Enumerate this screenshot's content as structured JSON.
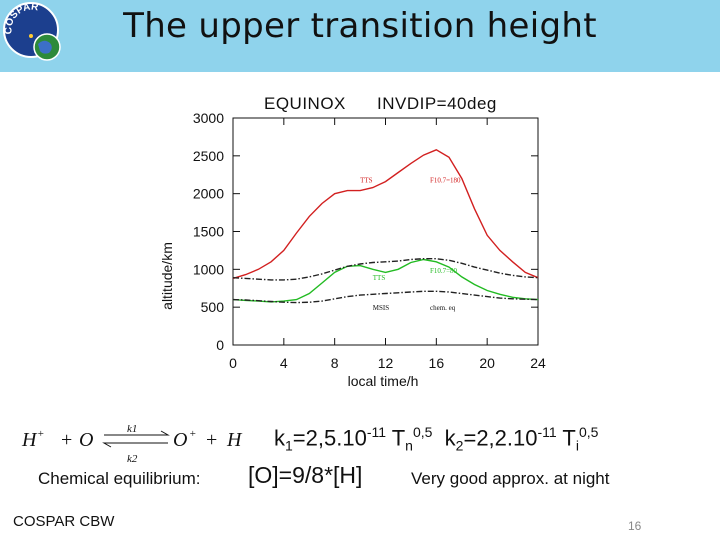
{
  "slide": {
    "title": "The upper transition height",
    "footer": "COSPAR CBW",
    "page_number": "16",
    "header_color": "#8fd3ec"
  },
  "logo": {
    "text": "COSPAR",
    "icon": "cospar-globe-logo"
  },
  "chart_data": {
    "type": "line",
    "header_left": "EQUINOX",
    "header_right": "INVDIP=40deg",
    "xlabel": "local time/h",
    "ylabel": "altitude/km",
    "xlim": [
      0,
      24
    ],
    "ylim": [
      0,
      3000
    ],
    "xticks": [
      0,
      4,
      8,
      12,
      16,
      20,
      24
    ],
    "yticks": [
      0,
      500,
      1000,
      1500,
      2000,
      2500,
      3000
    ],
    "grid": false,
    "series": [
      {
        "color": "#d22020",
        "dash": "solid",
        "x": [
          0,
          1,
          2,
          3,
          4,
          5,
          6,
          7,
          8,
          9,
          10,
          11,
          12,
          13,
          14,
          15,
          16,
          17,
          18,
          19,
          20,
          21,
          22,
          23,
          24
        ],
        "y": [
          880,
          930,
          1000,
          1100,
          1250,
          1480,
          1700,
          1870,
          2000,
          2040,
          2040,
          2080,
          2160,
          2280,
          2400,
          2510,
          2580,
          2480,
          2200,
          1800,
          1450,
          1250,
          1100,
          960,
          890
        ]
      },
      {
        "color": "#22bb22",
        "dash": "solid",
        "x": [
          0,
          1,
          2,
          3,
          4,
          5,
          6,
          7,
          8,
          9,
          10,
          11,
          12,
          13,
          14,
          15,
          16,
          17,
          18,
          19,
          20,
          21,
          22,
          23,
          24
        ],
        "y": [
          600,
          590,
          580,
          570,
          580,
          600,
          680,
          820,
          960,
          1040,
          1050,
          1000,
          960,
          1000,
          1090,
          1130,
          1100,
          1030,
          900,
          800,
          720,
          670,
          630,
          610,
          600
        ]
      },
      {
        "color": "#222222",
        "dash": "dashdot",
        "x": [
          0,
          1,
          2,
          3,
          4,
          5,
          6,
          7,
          8,
          9,
          10,
          11,
          12,
          13,
          14,
          15,
          16,
          17,
          18,
          19,
          20,
          21,
          22,
          23,
          24
        ],
        "y": [
          890,
          880,
          870,
          860,
          860,
          870,
          900,
          940,
          990,
          1040,
          1070,
          1090,
          1100,
          1110,
          1130,
          1140,
          1140,
          1120,
          1080,
          1030,
          990,
          950,
          920,
          900,
          890
        ]
      },
      {
        "color": "#222222",
        "dash": "dashdot",
        "x": [
          0,
          1,
          2,
          3,
          4,
          5,
          6,
          7,
          8,
          9,
          10,
          11,
          12,
          13,
          14,
          15,
          16,
          17,
          18,
          19,
          20,
          21,
          22,
          23,
          24
        ],
        "y": [
          600,
          595,
          585,
          575,
          565,
          560,
          565,
          580,
          610,
          640,
          660,
          670,
          680,
          690,
          700,
          710,
          710,
          700,
          680,
          660,
          640,
          620,
          610,
          605,
          600
        ]
      }
    ],
    "annotations": [
      {
        "text": "TTS",
        "x": 10,
        "y": 2150,
        "color": "#d22020"
      },
      {
        "text": "F10.7=180",
        "x": 15.5,
        "y": 2150,
        "color": "#d22020"
      },
      {
        "text": "TTS",
        "x": 11,
        "y": 860,
        "color": "#22bb22"
      },
      {
        "text": "F10.7=80",
        "x": 15.5,
        "y": 950,
        "color": "#22bb22"
      },
      {
        "text": "MSIS",
        "x": 11,
        "y": 460,
        "color": "#111111"
      },
      {
        "text": "chem. eq",
        "x": 15.5,
        "y": 460,
        "color": "#111111"
      }
    ]
  },
  "reaction": {
    "left": "H",
    "left_sup": "+",
    "plus1": "+",
    "reactant2": "O",
    "arrow_k1": "k1",
    "arrow_k2": "k2",
    "product1": "O",
    "product1_sup": "+",
    "plus2": "+",
    "product2": "H"
  },
  "rates": {
    "k1_name": "k",
    "k1_sub": "1",
    "k1_value": "=2,5.10",
    "k1_exp": "-11",
    "tn": " T",
    "tn_sub": "n",
    "tn_exp": "0,5",
    "k2_name": "k",
    "k2_sub": "2",
    "k2_value": "=2,2.10",
    "k2_exp": "-11",
    "ti": " T",
    "ti_sub": "i",
    "ti_exp": "0,5"
  },
  "equilibrium": {
    "label": "Chemical equilibrium:",
    "formula": "[O]=9/8*[H]",
    "note": "Very good approx. at night"
  }
}
